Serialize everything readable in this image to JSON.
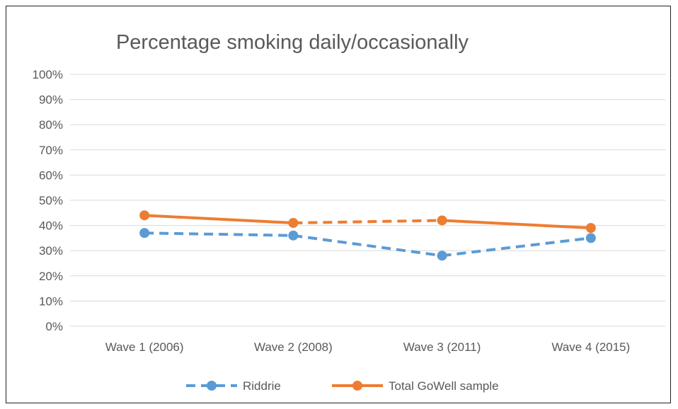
{
  "chart_data": {
    "type": "line",
    "title": "Percentage smoking daily/occasionally",
    "categories": [
      "Wave 1 (2006)",
      "Wave 2 (2008)",
      "Wave 3 (2011)",
      "Wave 4 (2015)"
    ],
    "y_ticks": [
      "0%",
      "10%",
      "20%",
      "30%",
      "40%",
      "50%",
      "60%",
      "70%",
      "80%",
      "90%",
      "100%"
    ],
    "ylim": [
      0,
      100
    ],
    "grid": true,
    "legend_position": "bottom",
    "series": [
      {
        "name": "Riddrie",
        "values": [
          37,
          36,
          28,
          35
        ],
        "color": "#5b9bd5",
        "dashed_segments": [
          true,
          true,
          true
        ]
      },
      {
        "name": "Total GoWell sample",
        "values": [
          44,
          41,
          42,
          39
        ],
        "color": "#ed7d31",
        "dashed_segments": [
          false,
          true,
          false
        ]
      }
    ]
  }
}
